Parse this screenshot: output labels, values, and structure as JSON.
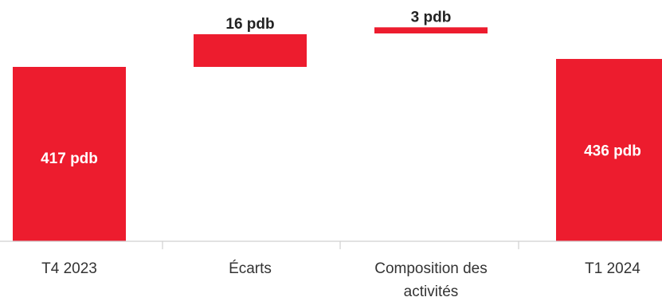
{
  "chart_data": {
    "type": "bar",
    "subtype": "waterfall",
    "categories": [
      [
        "T4 2023"
      ],
      [
        "Écarts"
      ],
      [
        "Composition des",
        "activités"
      ],
      [
        "T1 2024"
      ]
    ],
    "values": [
      417,
      16,
      3,
      436
    ],
    "kinds": [
      "total",
      "delta",
      "delta",
      "total"
    ],
    "data_labels": [
      "417 pdb",
      "16 pdb",
      "3 pdb",
      "436 pdb"
    ],
    "label_positions": [
      "inside",
      "above",
      "above",
      "inside"
    ],
    "unit": "pdb",
    "colors": {
      "bar": "#ED1C2E",
      "axis": "#d0d0d0",
      "text": "#333333"
    }
  }
}
